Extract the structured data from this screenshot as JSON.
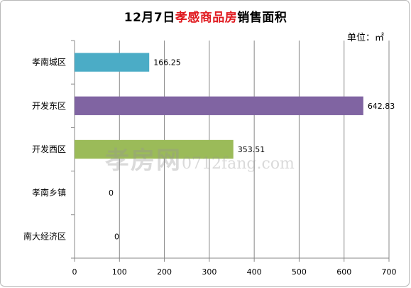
{
  "chart_data": {
    "type": "bar",
    "orientation": "horizontal",
    "title_parts": [
      "12月7日",
      "孝感商品房",
      "销售面积"
    ],
    "unit": "单位：㎡",
    "categories": [
      "孝南城区",
      "开发东区",
      "开发西区",
      "孝南乡镇",
      "南大经济区"
    ],
    "values": [
      166.25,
      642.83,
      353.51,
      0,
      0
    ],
    "value_labels": [
      "166.25",
      "642.83",
      "353.51",
      "0",
      "0"
    ],
    "colors": [
      "#4bacc6",
      "#8064a2",
      "#9bbb59",
      "#4f81bd",
      "#c0504d"
    ],
    "xlim": [
      0,
      700
    ],
    "x_ticks": [
      0,
      100,
      200,
      300,
      400,
      500,
      600,
      700
    ],
    "grid": true,
    "legend": "none"
  },
  "watermark": {
    "brand": "孝房网",
    "domain": "0712fang.com"
  },
  "title_highlight_color": "#e0191f"
}
